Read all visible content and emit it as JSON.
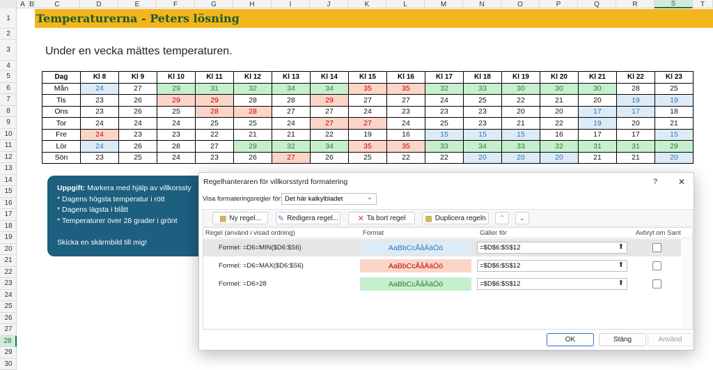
{
  "sheet": {
    "columns": [
      "A",
      "B",
      "C",
      "D",
      "E",
      "F",
      "G",
      "H",
      "I",
      "J",
      "K",
      "L",
      "M",
      "N",
      "O",
      "P",
      "Q",
      "R",
      "S",
      "T"
    ],
    "rows": [
      1,
      2,
      3,
      4,
      5,
      6,
      7,
      8,
      9,
      10,
      11,
      12,
      13,
      14,
      15,
      16,
      17,
      18,
      19,
      20,
      21,
      22,
      23,
      24,
      25,
      26,
      27,
      28,
      29,
      30
    ],
    "selected": {
      "column": "S",
      "row": 28
    }
  },
  "title": "Temperaturerna - Peters lösning",
  "subtitle": "Under en vecka mättes temperaturen.",
  "table": {
    "header": [
      "Dag",
      "Kl 8",
      "Kl 9",
      "Kl 10",
      "Kl 11",
      "Kl 12",
      "Kl 13",
      "Kl 14",
      "Kl 15",
      "Kl 16",
      "Kl 17",
      "Kl 18",
      "Kl 19",
      "Kl 20",
      "Kl 21",
      "Kl 22",
      "Kl 23"
    ],
    "rows": [
      {
        "day": "Mån",
        "values": [
          24,
          27,
          29,
          31,
          32,
          34,
          34,
          35,
          35,
          32,
          33,
          30,
          30,
          30,
          28,
          25
        ],
        "fills": [
          "#ddebf7",
          null,
          "#c6efce",
          "#c6efce",
          "#c6efce",
          "#c6efce",
          "#c6efce",
          "#fcd5c9",
          "#fcd5c9",
          "#c6efce",
          "#c6efce",
          "#c6efce",
          "#c6efce",
          "#c6efce",
          null,
          null
        ]
      },
      {
        "day": "Tis",
        "values": [
          23,
          26,
          29,
          29,
          28,
          28,
          29,
          27,
          27,
          24,
          25,
          22,
          21,
          20,
          19,
          19
        ],
        "fills": [
          null,
          null,
          "#fcd5c9",
          "#fcd5c9",
          null,
          null,
          "#fcd5c9",
          null,
          null,
          null,
          null,
          null,
          null,
          null,
          "#ddebf7",
          "#ddebf7"
        ]
      },
      {
        "day": "Ons",
        "values": [
          23,
          26,
          25,
          28,
          28,
          27,
          27,
          24,
          23,
          23,
          23,
          20,
          20,
          17,
          17,
          18
        ],
        "fills": [
          null,
          null,
          null,
          "#fcd5c9",
          "#fcd5c9",
          null,
          null,
          null,
          null,
          null,
          null,
          null,
          null,
          "#ddebf7",
          "#ddebf7",
          null
        ]
      },
      {
        "day": "Tor",
        "values": [
          24,
          24,
          24,
          25,
          25,
          24,
          27,
          27,
          24,
          25,
          23,
          21,
          22,
          19,
          20,
          21
        ],
        "fills": [
          null,
          null,
          null,
          null,
          null,
          null,
          "#fcd5c9",
          "#fcd5c9",
          null,
          null,
          null,
          null,
          null,
          "#ddebf7",
          null,
          null
        ]
      },
      {
        "day": "Fre",
        "values": [
          24,
          23,
          23,
          22,
          21,
          21,
          22,
          19,
          16,
          15,
          15,
          15,
          16,
          17,
          17,
          15
        ],
        "fills": [
          "#fcd5c9",
          null,
          null,
          null,
          null,
          null,
          null,
          null,
          null,
          "#ddebf7",
          "#ddebf7",
          "#ddebf7",
          null,
          null,
          null,
          "#ddebf7"
        ]
      },
      {
        "day": "Lör",
        "values": [
          24,
          26,
          28,
          27,
          29,
          32,
          34,
          35,
          35,
          33,
          34,
          33,
          32,
          31,
          31,
          29
        ],
        "fills": [
          "#ddebf7",
          null,
          null,
          null,
          "#c6efce",
          "#c6efce",
          "#c6efce",
          "#fcd5c9",
          "#fcd5c9",
          "#c6efce",
          "#c6efce",
          "#c6efce",
          "#c6efce",
          "#c6efce",
          "#c6efce",
          "#c6efce"
        ]
      },
      {
        "day": "Sön",
        "values": [
          23,
          25,
          24,
          23,
          26,
          27,
          26,
          25,
          22,
          22,
          20,
          20,
          20,
          21,
          21,
          20
        ],
        "fills": [
          null,
          null,
          null,
          null,
          null,
          "#fcd5c9",
          null,
          null,
          null,
          null,
          "#ddebf7",
          "#ddebf7",
          "#ddebf7",
          null,
          null,
          "#ddebf7"
        ]
      }
    ]
  },
  "task": {
    "label": "Uppgift:",
    "text": "Markera med hjälp av villkorssty",
    "items": [
      "* Dagens högsta temperatur i rött",
      "* Dagens lägsta i blått",
      "* Temperaturer över 28 grader i grönt"
    ],
    "footer": "Skicka en skärmbild till mig!"
  },
  "dialog": {
    "title": "Regelhanteraren för villkorsstyrd formatering",
    "help": "?",
    "close": "✕",
    "show_label": "Visa formateringsregler för:",
    "show_value": "Det här kalkylbladet",
    "buttons": [
      "Ny regel...",
      "Redigera regel...",
      "Ta bort regel",
      "Duplicera regeln"
    ],
    "columns": [
      "Regel (använd i visad ordning)",
      "Format",
      "Gäller för",
      "Avbryt om Sant"
    ],
    "rules": [
      {
        "rule": "Formel: =D6=MIN($D6:$S6)",
        "preview": "AaBbCcÅåÄäÖö",
        "applies_to": "=$D$6:$S$12",
        "fill": "#ddebf7",
        "text_color": "#2f75b5"
      },
      {
        "rule": "Formel: =D6=MAX($D6:$S6)",
        "preview": "AaBbCcÅåÄäÖö",
        "applies_to": "=$D$6:$S$12",
        "fill": "#fcd5c9",
        "text_color": "#c00000"
      },
      {
        "rule": "Formel: =D6>28",
        "preview": "AaBbCcÅåÄäÖö",
        "applies_to": "=$D$6:$S$12",
        "fill": "#c6efce",
        "text_color": "#2e7d32"
      }
    ],
    "footer_buttons": [
      "OK",
      "Stäng",
      "Använd"
    ]
  }
}
